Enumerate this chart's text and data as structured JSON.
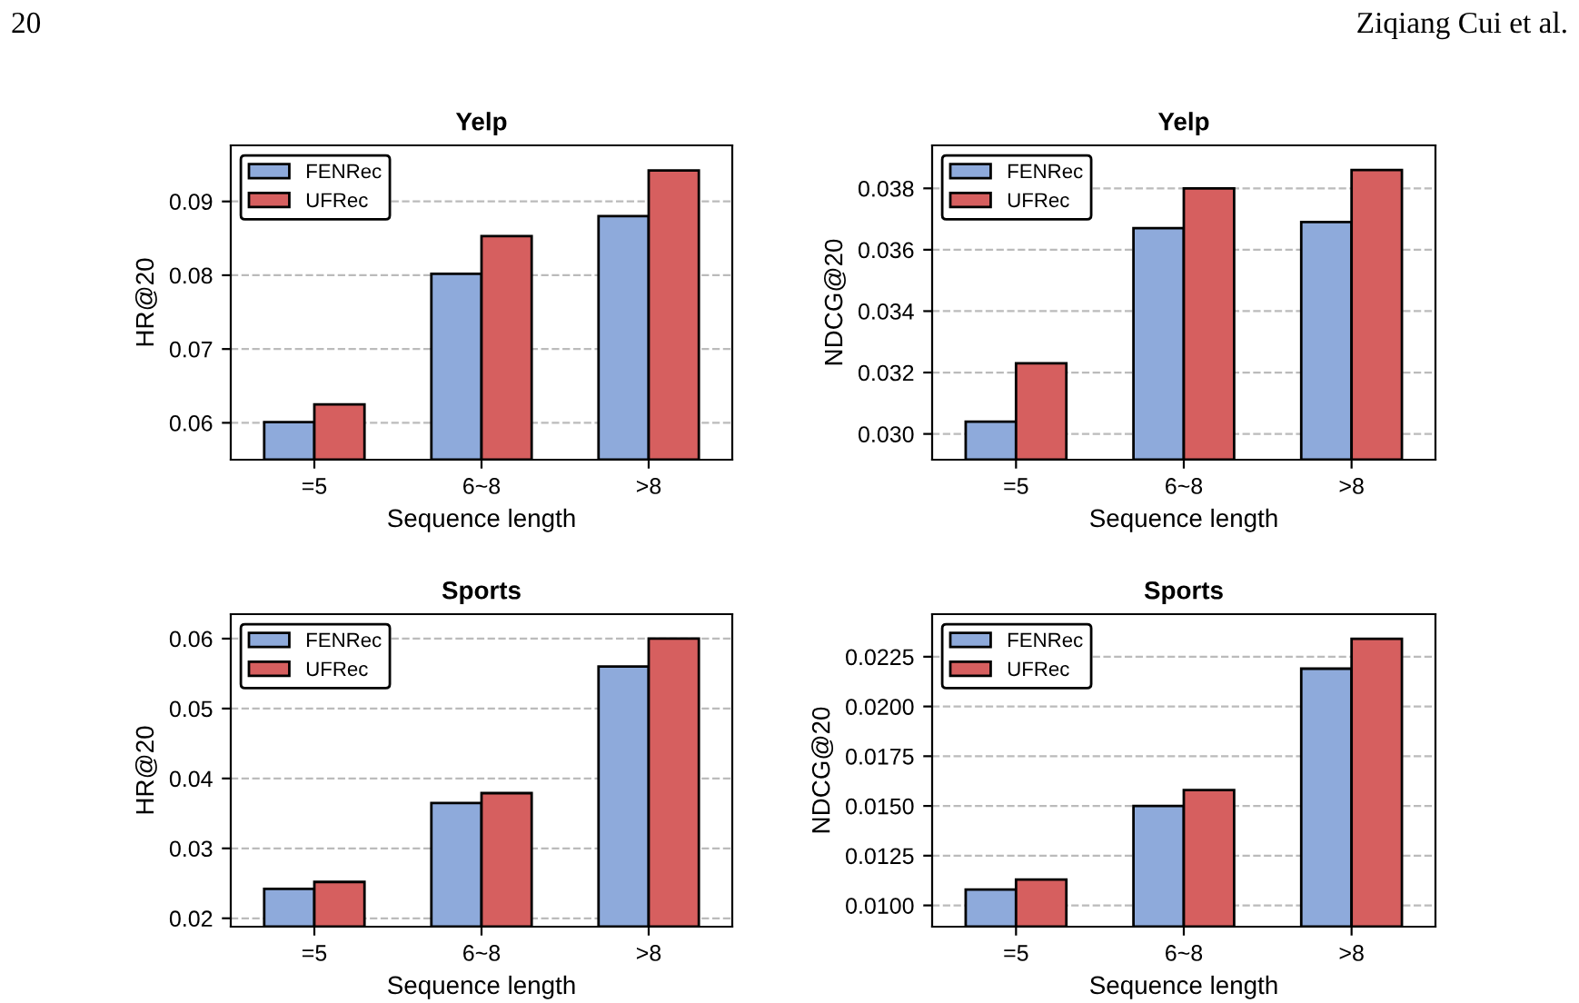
{
  "chart_data": [
    {
      "type": "bar",
      "title": "Yelp",
      "xlabel": "Sequence length",
      "ylabel": "HR@20",
      "annotations": [
        "20",
        "Ziqiang Cui et al."
      ],
      "categories": [
        "=5",
        "6~8",
        ">8"
      ],
      "series": [
        {
          "name": "FENRec",
          "color": "#8eaadb",
          "values": [
            0.0601,
            0.0802,
            0.088
          ]
        },
        {
          "name": "UFRec",
          "color": "#d65f5f",
          "values": [
            0.0625,
            0.0853,
            0.0942
          ]
        }
      ],
      "ylim": [
        0.055,
        0.0976
      ],
      "yticks": [
        0.06,
        0.07,
        0.08,
        0.09
      ],
      "grid": "y",
      "legend": "top left"
    },
    {
      "type": "bar",
      "title": "Yelp",
      "xlabel": "Sequence length",
      "ylabel": "NDCG@20",
      "categories": [
        "=5",
        "6~8",
        ">8"
      ],
      "series": [
        {
          "name": "FENRec",
          "color": "#8eaadb",
          "values": [
            0.0304,
            0.0367,
            0.0369
          ]
        },
        {
          "name": "UFRec",
          "color": "#d65f5f",
          "values": [
            0.0323,
            0.038,
            0.0386
          ]
        }
      ],
      "ylim": [
        0.02916,
        0.0394
      ],
      "yticks": [
        {
          "value": 0.03,
          "label": "0.030"
        },
        0.032,
        0.034,
        0.036,
        0.038
      ],
      "grid": "y",
      "legend": "top left"
    },
    {
      "type": "bar",
      "title": "Sports",
      "xlabel": "Sequence length",
      "ylabel": "HR@20",
      "categories": [
        "=5",
        "6~8",
        ">8"
      ],
      "series": [
        {
          "name": "FENRec",
          "color": "#8eaadb",
          "values": [
            0.0242,
            0.0365,
            0.056
          ]
        },
        {
          "name": "UFRec",
          "color": "#d65f5f",
          "values": [
            0.0252,
            0.0379,
            0.06
          ]
        }
      ],
      "ylim": [
        0.0188,
        0.0635
      ],
      "yticks": [
        0.02,
        0.03,
        0.04,
        0.05,
        0.06
      ],
      "grid": "y",
      "legend": "top left"
    },
    {
      "type": "bar",
      "title": "Sports",
      "xlabel": "Sequence length",
      "ylabel": "NDCG@20",
      "categories": [
        "=5",
        "6~8",
        ">8"
      ],
      "series": [
        {
          "name": "FENRec",
          "color": "#8eaadb",
          "values": [
            0.0108,
            0.015,
            0.0219
          ]
        },
        {
          "name": "UFRec",
          "color": "#d65f5f",
          "values": [
            0.0113,
            0.0158,
            0.0234
          ]
        }
      ],
      "ylim": [
        0.00893,
        0.02464
      ],
      "yticks": [
        {
          "value": 0.01,
          "label": "0.0100"
        },
        {
          "value": 0.0125,
          "label": "0.0125"
        },
        {
          "value": 0.015,
          "label": "0.0150"
        },
        {
          "value": 0.0175,
          "label": "0.0175"
        },
        {
          "value": 0.02,
          "label": "0.0200"
        },
        {
          "value": 0.0225,
          "label": "0.0225"
        }
      ],
      "grid": "y",
      "legend": "top left"
    }
  ]
}
